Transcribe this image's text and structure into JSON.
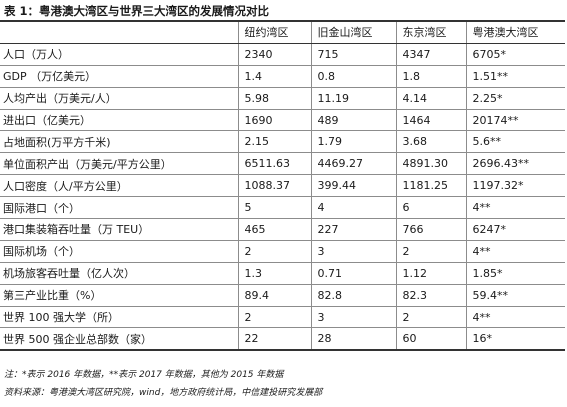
{
  "caption": "表 1：粤港澳大湾区与世界三大湾区的发展情况对比",
  "table": {
    "headers": [
      "",
      "纽约湾区",
      "旧金山湾区",
      "东京湾区",
      "粤港澳大湾区"
    ],
    "rows": [
      [
        "人口（万人）",
        "2340",
        "715",
        "4347",
        "6705*"
      ],
      [
        "GDP （万亿美元）",
        "1.4",
        "0.8",
        "1.8",
        "1.51**"
      ],
      [
        "人均产出（万美元/人）",
        "5.98",
        "11.19",
        "4.14",
        "2.25*"
      ],
      [
        "进出口（亿美元）",
        "1690",
        "489",
        "1464",
        "20174**"
      ],
      [
        "占地面积(万平方千米)",
        "2.15",
        "1.79",
        "3.68",
        "5.6**"
      ],
      [
        "单位面积产出（万美元/平方公里）",
        "6511.63",
        "4469.27",
        "4891.30",
        "2696.43**"
      ],
      [
        "人口密度（人/平方公里）",
        "1088.37",
        "399.44",
        "1181.25",
        "1197.32*"
      ],
      [
        "国际港口（个）",
        "5",
        "4",
        "6",
        "4**"
      ],
      [
        "港口集装箱吞吐量（万 TEU）",
        "465",
        "227",
        "766",
        "6247*"
      ],
      [
        "国际机场（个）",
        "2",
        "3",
        "2",
        "4**"
      ],
      [
        "机场旅客吞吐量（亿人次）",
        "1.3",
        "0.71",
        "1.12",
        "1.85*"
      ],
      [
        "第三产业比重（%）",
        "89.4",
        "82.8",
        "82.3",
        "59.4**"
      ],
      [
        "世界 100 强大学（所）",
        "2",
        "3",
        "2",
        "4**"
      ],
      [
        "世界 500 强企业总部数（家）",
        "22",
        "28",
        "60",
        "16*"
      ]
    ]
  },
  "notes": {
    "note": "注：*表示 2016 年数据，**表示 2017 年数据，其他为 2015 年数据",
    "source": "资料来源：粤港澳大湾区研究院，wind，地方政府统计局，中信建投研究发展部"
  }
}
